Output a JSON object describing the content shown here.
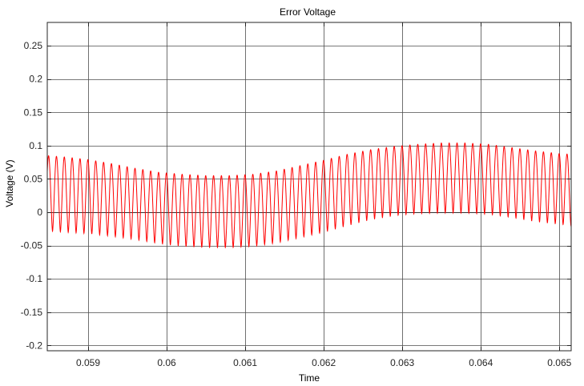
{
  "chart_data": {
    "type": "line",
    "title": "Error Voltage",
    "xlabel": "Time",
    "ylabel": "Voltage (V)",
    "xlim": [
      0.05848,
      0.06515
    ],
    "ylim": [
      -0.208,
      0.285
    ],
    "xticks": [
      0.059,
      0.06,
      0.061,
      0.062,
      0.063,
      0.064,
      0.065
    ],
    "xtick_labels": [
      "0.059",
      "0.06",
      "0.061",
      "0.062",
      "0.063",
      "0.064",
      "0.065"
    ],
    "yticks": [
      -0.2,
      -0.15,
      -0.1,
      -0.05,
      0,
      0.05,
      0.1,
      0.15,
      0.2,
      0.25
    ],
    "ytick_labels": [
      "-0.2",
      "-0.15",
      "-0.1",
      "-0.05",
      "0",
      "0.05",
      "0.1",
      "0.15",
      "0.2",
      "0.25"
    ],
    "grid": true,
    "legend": "none",
    "colors": {
      "series": "#ff0000",
      "grid": "#4d4d4d",
      "axes": "#262626",
      "background": "#ffffff"
    },
    "series": [
      {
        "oscillation_period_s": 0.0001,
        "waveform": "shifted sinusoid, rounded peaks and narrow troughs",
        "envelope": {
          "t": [
            0.05848,
            0.0587,
            0.059,
            0.0593,
            0.0596,
            0.0599,
            0.0602,
            0.0605,
            0.0608,
            0.0611,
            0.0614,
            0.0617,
            0.062,
            0.0623,
            0.0626,
            0.0629,
            0.0632,
            0.0635,
            0.0638,
            0.0641,
            0.0644,
            0.0647,
            0.065,
            0.06515
          ],
          "max": [
            0.085,
            0.083,
            0.079,
            0.073,
            0.066,
            0.06,
            0.057,
            0.055,
            0.055,
            0.057,
            0.062,
            0.07,
            0.078,
            0.087,
            0.094,
            0.099,
            0.102,
            0.104,
            0.104,
            0.102,
            0.097,
            0.092,
            0.088,
            0.087
          ],
          "min": [
            -0.028,
            -0.03,
            -0.032,
            -0.036,
            -0.041,
            -0.047,
            -0.051,
            -0.053,
            -0.053,
            -0.051,
            -0.046,
            -0.038,
            -0.03,
            -0.02,
            -0.011,
            -0.005,
            -0.002,
            -0.001,
            -0.001,
            -0.003,
            -0.008,
            -0.014,
            -0.018,
            -0.02
          ]
        }
      }
    ]
  }
}
